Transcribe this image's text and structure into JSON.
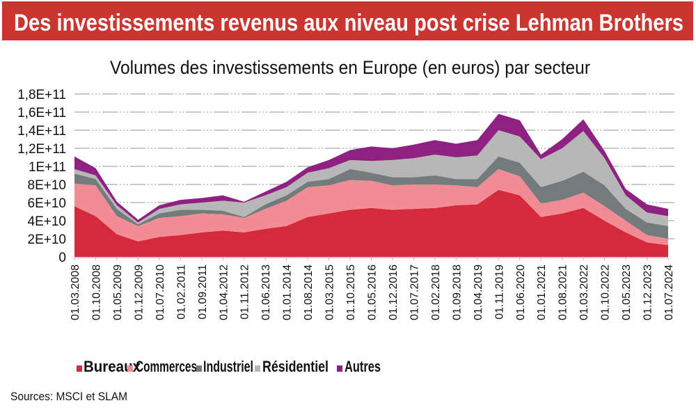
{
  "chart_data": {
    "type": "area",
    "stacked": true,
    "title": "Des investissements revenus aux niveau post crise Lehman Brothers",
    "subtitle": "Volumes des investissements en Europe (en euros) par secteur",
    "source": "Sources: MSCI et SLAM",
    "xlabel": "",
    "ylabel": "",
    "ylim": [
      0,
      180000000000.0
    ],
    "yticks": [
      0,
      20000000000.0,
      40000000000.0,
      60000000000.0,
      80000000000.0,
      100000000000.0,
      120000000000.0,
      140000000000.0,
      160000000000.0,
      180000000000.0
    ],
    "ytick_labels": [
      "0",
      "2E+10",
      "4E+10",
      "6E+10",
      "8E+10",
      "1E+11",
      "1,2E+11",
      "1,4E+11",
      "1,6E+11",
      "1,8E+11"
    ],
    "grid": "horizontal dashed",
    "legend": "bottom",
    "x": [
      "01.03.2008",
      "01.10.2008",
      "01.05.2009",
      "01.12.2009",
      "01.07.2010",
      "01.02.2011",
      "01.09.2011",
      "01.04.2012",
      "01.11.2012",
      "01.06.2013",
      "01.01.2014",
      "01.08.2014",
      "01.03.2015",
      "01.10.2015",
      "01.05.2016",
      "01.12.2016",
      "01.07.2017",
      "01.02.2018",
      "01.09.2018",
      "01.04.2019",
      "01.11.2019",
      "01.06.2020",
      "01.01.2021",
      "01.08.2021",
      "01.03.2022",
      "01.10.2022",
      "01.05.2023",
      "01.12.2023",
      "01.07.2024"
    ],
    "series": [
      {
        "name": "Bureaux",
        "color": "#d42a3c",
        "values": [
          56000000000.0,
          45000000000.0,
          25000000000.0,
          17000000000.0,
          22000000000.0,
          24000000000.0,
          27000000000.0,
          29000000000.0,
          27000000000.0,
          31000000000.0,
          34000000000.0,
          44000000000.0,
          48000000000.0,
          52000000000.0,
          54000000000.0,
          52000000000.0,
          53000000000.0,
          54000000000.0,
          57000000000.0,
          58000000000.0,
          74000000000.0,
          68000000000.0,
          44000000000.0,
          48000000000.0,
          54000000000.0,
          40000000000.0,
          27000000000.0,
          16000000000.0,
          13000000000.0
        ]
      },
      {
        "name": "Commerces",
        "color": "#f28c94",
        "values": [
          25000000000.0,
          34000000000.0,
          20000000000.0,
          17000000000.0,
          21000000000.0,
          21000000000.0,
          21000000000.0,
          18000000000.0,
          16000000000.0,
          22000000000.0,
          28000000000.0,
          33000000000.0,
          31000000000.0,
          33000000000.0,
          30000000000.0,
          27000000000.0,
          27000000000.0,
          26000000000.0,
          22000000000.0,
          19000000000.0,
          23000000000.0,
          21000000000.0,
          15000000000.0,
          15000000000.0,
          17000000000.0,
          16000000000.0,
          13000000000.0,
          8000000000.0,
          7000000000.0
        ]
      },
      {
        "name": "Industriel",
        "color": "#737b7d",
        "values": [
          11000000000.0,
          7000000000.0,
          8000000000.0,
          2000000000.0,
          5000000000.0,
          7000000000.0,
          4000000000.0,
          4000000000.0,
          1000000000.0,
          5000000000.0,
          6000000000.0,
          6000000000.0,
          7000000000.0,
          12000000000.0,
          9000000000.0,
          9000000000.0,
          8000000000.0,
          10000000000.0,
          7000000000.0,
          9000000000.0,
          14000000000.0,
          15000000000.0,
          18000000000.0,
          21000000000.0,
          23000000000.0,
          23000000000.0,
          13000000000.0,
          14000000000.0,
          14000000000.0
        ]
      },
      {
        "name": "Résidentiel",
        "color": "#b7b7b7",
        "values": [
          5000000000.0,
          4000000000.0,
          4000000000.0,
          2000000000.0,
          5000000000.0,
          6000000000.0,
          8000000000.0,
          11000000000.0,
          16000000000.0,
          10000000000.0,
          9000000000.0,
          10000000000.0,
          12000000000.0,
          10000000000.0,
          13000000000.0,
          19000000000.0,
          21000000000.0,
          23000000000.0,
          24000000000.0,
          26000000000.0,
          29000000000.0,
          29000000000.0,
          31000000000.0,
          36000000000.0,
          45000000000.0,
          30000000000.0,
          15000000000.0,
          11000000000.0,
          11000000000.0
        ]
      },
      {
        "name": "Autres",
        "color": "#8e2181",
        "values": [
          14000000000.0,
          8000000000.0,
          4000000000.0,
          3000000000.0,
          4000000000.0,
          5000000000.0,
          5000000000.0,
          6000000000.0,
          1000000000.0,
          4000000000.0,
          6000000000.0,
          6000000000.0,
          9000000000.0,
          11000000000.0,
          16000000000.0,
          13000000000.0,
          15000000000.0,
          16000000000.0,
          15000000000.0,
          17000000000.0,
          18000000000.0,
          18000000000.0,
          5000000000.0,
          10000000000.0,
          13000000000.0,
          8000000000.0,
          7000000000.0,
          9000000000.0,
          8000000000.0
        ]
      }
    ]
  },
  "colors": {
    "title_bar": "#cb3530",
    "title_text": "#ffffff",
    "grid": "#c8c8c8"
  }
}
